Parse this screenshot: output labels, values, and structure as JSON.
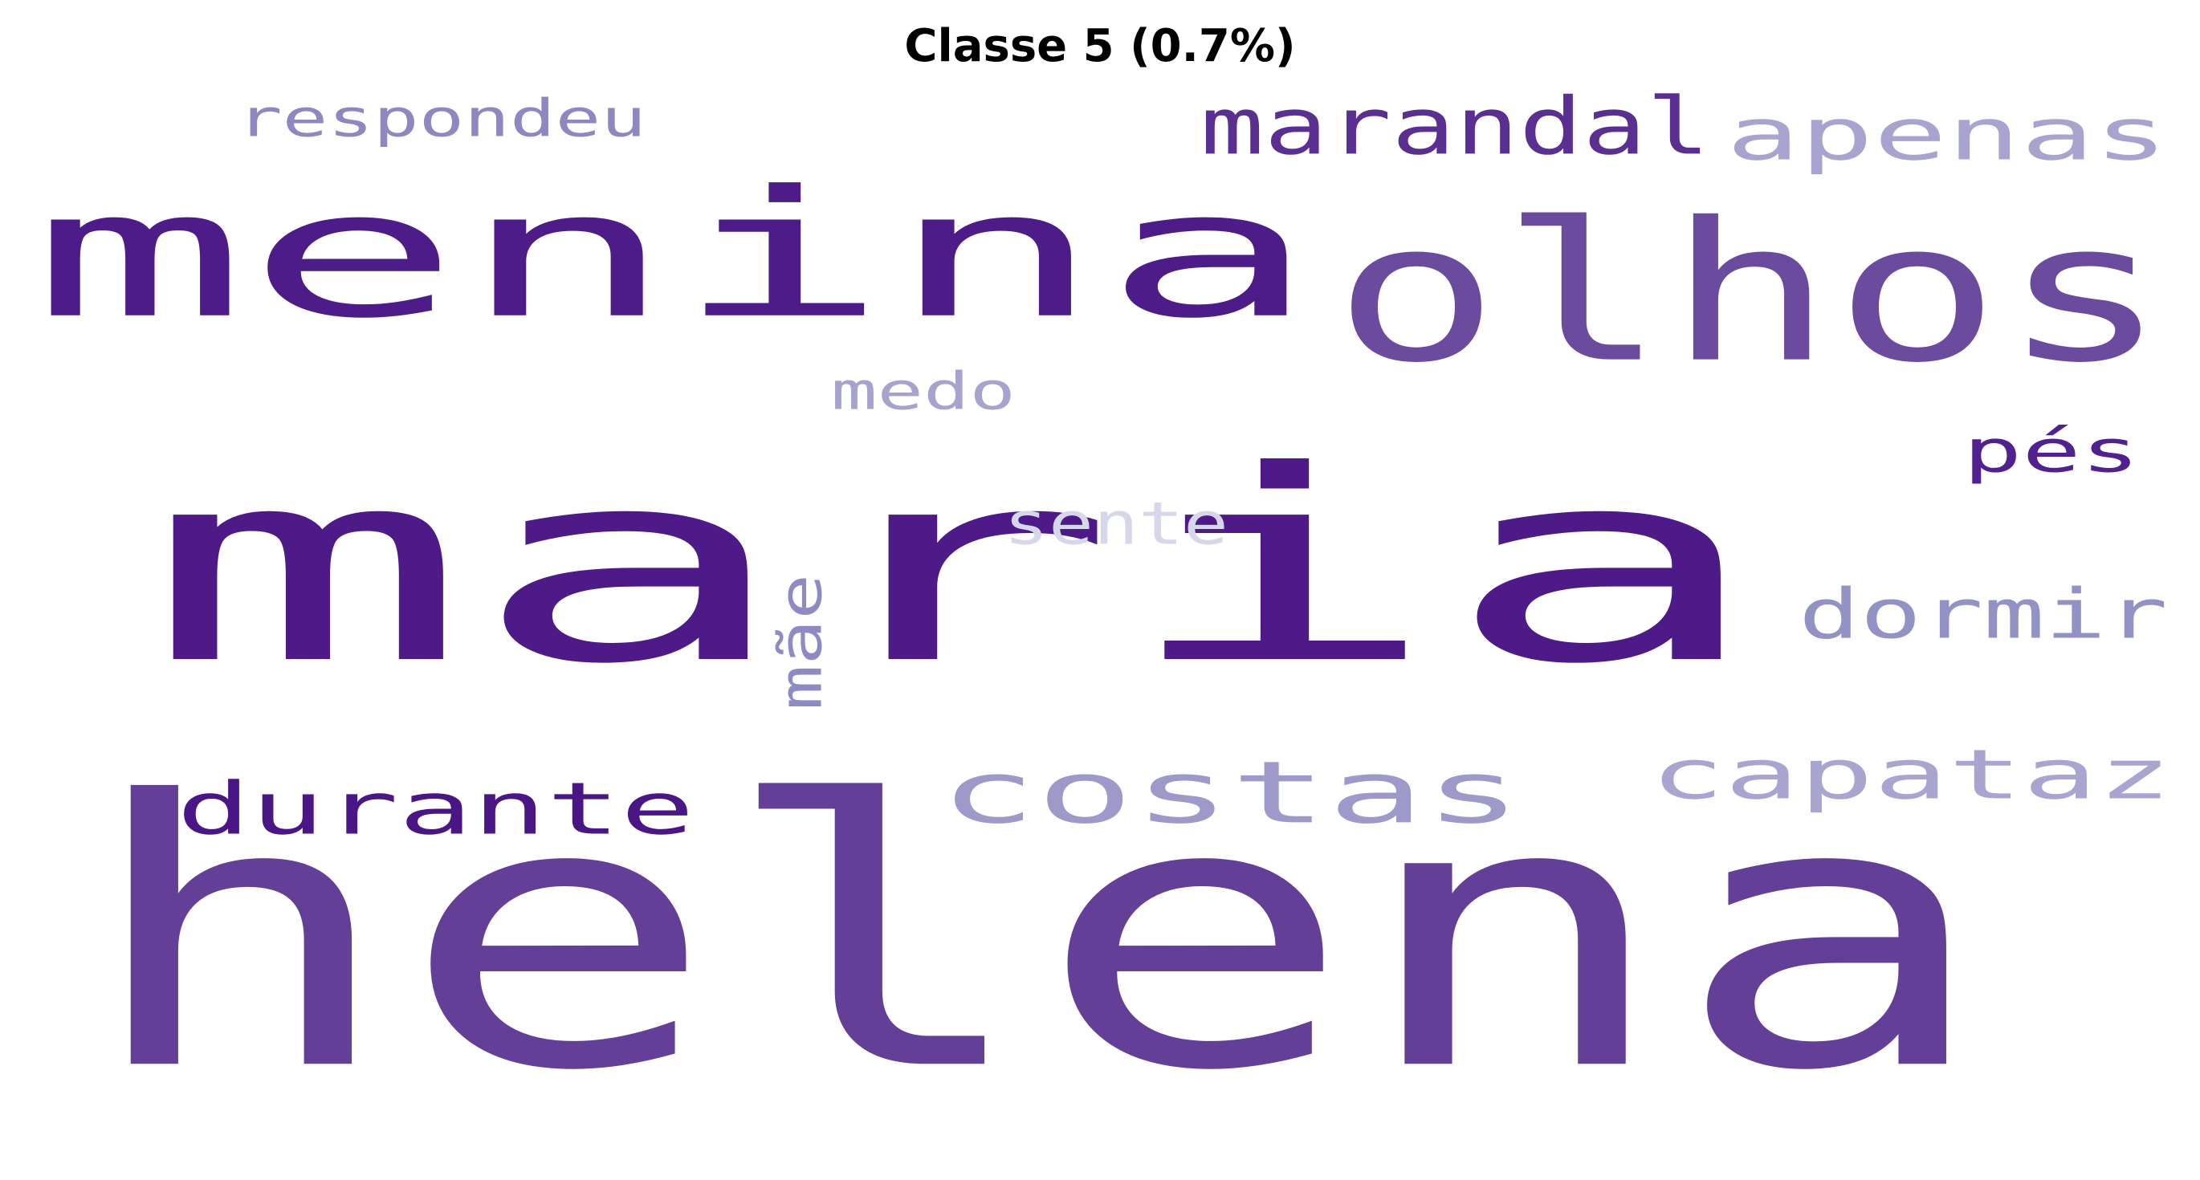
{
  "title": "Classe 5 (0.7%)",
  "words": [
    {
      "text": "helena",
      "color": "#643F98"
    },
    {
      "text": "maria",
      "color": "#4D1A88"
    },
    {
      "text": "menina",
      "color": "#4E1C89"
    },
    {
      "text": "olhos",
      "color": "#6A4B9E"
    },
    {
      "text": "costas",
      "color": "#9D9ACA"
    },
    {
      "text": "durante",
      "color": "#4A1585"
    },
    {
      "text": "capataz",
      "color": "#A8A6D0"
    },
    {
      "text": "marandal",
      "color": "#5A2F91"
    },
    {
      "text": "apenas",
      "color": "#A7A4CF"
    },
    {
      "text": "dormir",
      "color": "#9392C4"
    },
    {
      "text": "pés",
      "color": "#522190"
    },
    {
      "text": "respondeu",
      "color": "#8D89C0"
    },
    {
      "text": "medo",
      "color": "#A6A3CF"
    },
    {
      "text": "sente",
      "color": "#D7D7EC"
    },
    {
      "text": "mãe",
      "color": "#8E8BC2"
    }
  ]
}
